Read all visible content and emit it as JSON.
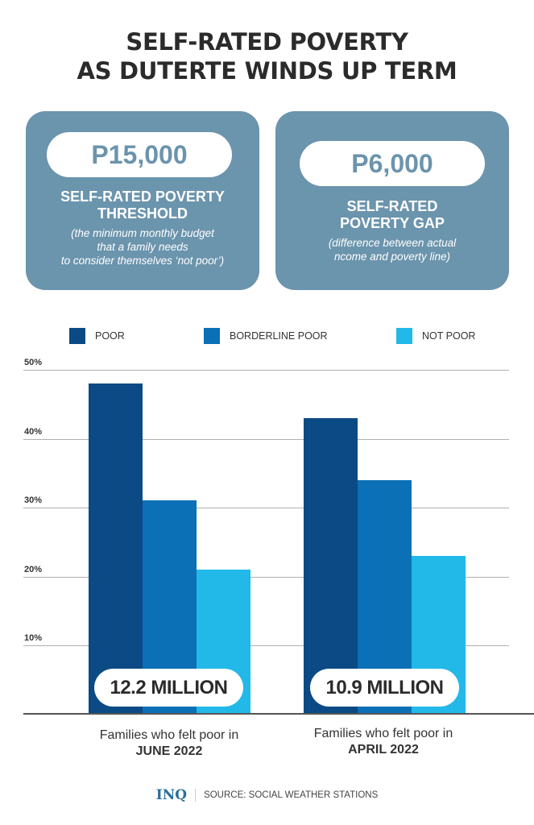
{
  "title": {
    "line1": "SELF-RATED POVERTY",
    "line2": "AS DUTERTE WINDS UP TERM"
  },
  "cards": [
    {
      "value": "P15,000",
      "label_line1": "SELF-RATED POVERTY",
      "label_line2": "THRESHOLD",
      "note_line1": "(the minimum monthly budget",
      "note_line2": "that a family needs",
      "note_line3": "to consider themselves ‘not poor’)"
    },
    {
      "value": "P6,000",
      "label_line1": "SELF-RATED",
      "label_line2": "POVERTY GAP",
      "note_line1": "(difference between actual",
      "note_line2": "ncome and poverty line)"
    }
  ],
  "colors": {
    "card_bg": "#6b94ad",
    "poor": "#0b4a84",
    "borderline_poor": "#0b70b6",
    "not_poor": "#22b9e8",
    "logo": "#2a6f9f"
  },
  "chart_data": {
    "type": "bar",
    "title": "Self-rated poverty as Duterte winds up term",
    "categories": [
      "JUNE 2022",
      "APRIL 2022"
    ],
    "category_captions": [
      "Families who felt poor in",
      "Families who felt poor in"
    ],
    "series": [
      {
        "name": "POOR",
        "color": "#0b4a84",
        "values": [
          48,
          43
        ]
      },
      {
        "name": "BORDERLINE POOR",
        "color": "#0b70b6",
        "values": [
          31,
          34
        ]
      },
      {
        "name": "NOT POOR",
        "color": "#22b9e8",
        "values": [
          21,
          23
        ]
      }
    ],
    "annotations": [
      "12.2 MILLION",
      "10.9 MILLION"
    ],
    "yticks": [
      "10%",
      "20%",
      "30%",
      "40%",
      "50%"
    ],
    "ylim": [
      0,
      50
    ],
    "xlabel": "",
    "ylabel": "",
    "grid": true,
    "legend_position": "top"
  },
  "legend": [
    {
      "label": "POOR"
    },
    {
      "label": "BORDERLINE POOR"
    },
    {
      "label": "NOT POOR"
    }
  ],
  "footer": {
    "logo": "INQ",
    "source": "SOURCE: SOCIAL WEATHER STATIONS"
  }
}
